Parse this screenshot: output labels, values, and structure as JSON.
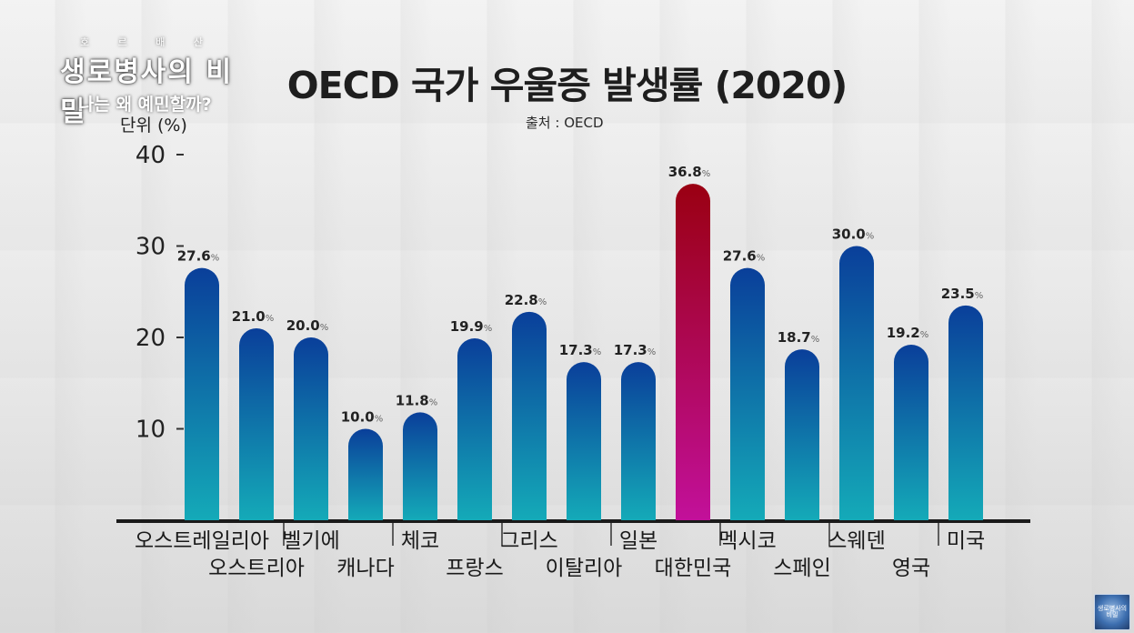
{
  "logo": {
    "small_text": "호 르 배 산",
    "title": "생로병사의 비밀",
    "subtitle": "나는 왜 예민할까?"
  },
  "corner_badge": "생로병사의 비밀",
  "colors": {
    "bar_top": "#0a3f9a",
    "bar_bottom": "#14aab8",
    "highlight_top": "#9a0012",
    "highlight_bottom": "#c2109a",
    "axis": "#1a1a1a"
  },
  "chart_data": {
    "type": "bar",
    "title": "OECD 국가 우울증 발생률 (2020)",
    "source": "출처 : OECD",
    "ylabel": "단위 (%)",
    "ylim": [
      0,
      40
    ],
    "yticks": [
      "10",
      "20",
      "30",
      "40"
    ],
    "value_suffix": "%",
    "categories": [
      "오스트레일리아",
      "오스트리아",
      "벨기에",
      "캐나다",
      "체코",
      "프랑스",
      "그리스",
      "이탈리아",
      "일본",
      "대한민국",
      "멕시코",
      "스페인",
      "스웨덴",
      "영국",
      "미국"
    ],
    "values": [
      27.6,
      21.0,
      20.0,
      10.0,
      11.8,
      19.9,
      22.8,
      17.3,
      17.3,
      36.8,
      27.6,
      18.7,
      30.0,
      19.2,
      23.5
    ],
    "value_labels": [
      "27.6",
      "21.0",
      "20.0",
      "10.0",
      "11.8",
      "19.9",
      "22.8",
      "17.3",
      "17.3",
      "36.8",
      "27.6",
      "18.7",
      "30.0",
      "19.2",
      "23.5"
    ],
    "highlight": "대한민국",
    "grid": false
  }
}
